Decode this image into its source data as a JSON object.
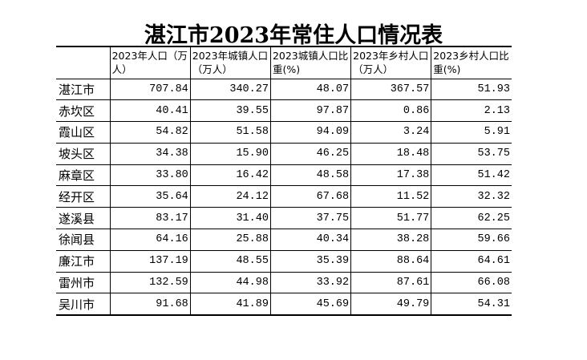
{
  "title": "湛江市2023年常住人口情况表",
  "headers": [
    "",
    "2023年人口（万人）",
    "2023年城镇人口（万人）",
    "2023城镇人口比重(%)",
    "2023年乡村人口（万人）",
    "2023乡村人口比重(%)"
  ],
  "rows": [
    [
      "湛江市",
      "707.84",
      "340.27",
      "48.07",
      "367.57",
      "51.93"
    ],
    [
      "赤坎区",
      "40.41",
      "39.55",
      "97.87",
      "0.86",
      "2.13"
    ],
    [
      "霞山区",
      "54.82",
      "51.58",
      "94.09",
      "3.24",
      "5.91"
    ],
    [
      "坡头区",
      "34.38",
      "15.90",
      "46.25",
      "18.48",
      "53.75"
    ],
    [
      "麻章区",
      "33.80",
      "16.42",
      "48.58",
      "17.38",
      "51.42"
    ],
    [
      "经开区",
      "35.64",
      "24.12",
      "67.68",
      "11.52",
      "32.32"
    ],
    [
      "遂溪县",
      "83.17",
      "31.40",
      "37.75",
      "51.77",
      "62.25"
    ],
    [
      "徐闻县",
      "64.16",
      "25.88",
      "40.34",
      "38.28",
      "59.66"
    ],
    [
      "廉江市",
      "137.19",
      "48.55",
      "35.39",
      "88.64",
      "64.61"
    ],
    [
      "雷州市",
      "132.59",
      "44.98",
      "33.92",
      "87.61",
      "66.08"
    ],
    [
      "吴川市",
      "91.68",
      "41.89",
      "45.69",
      "49.79",
      "54.31"
    ]
  ]
}
